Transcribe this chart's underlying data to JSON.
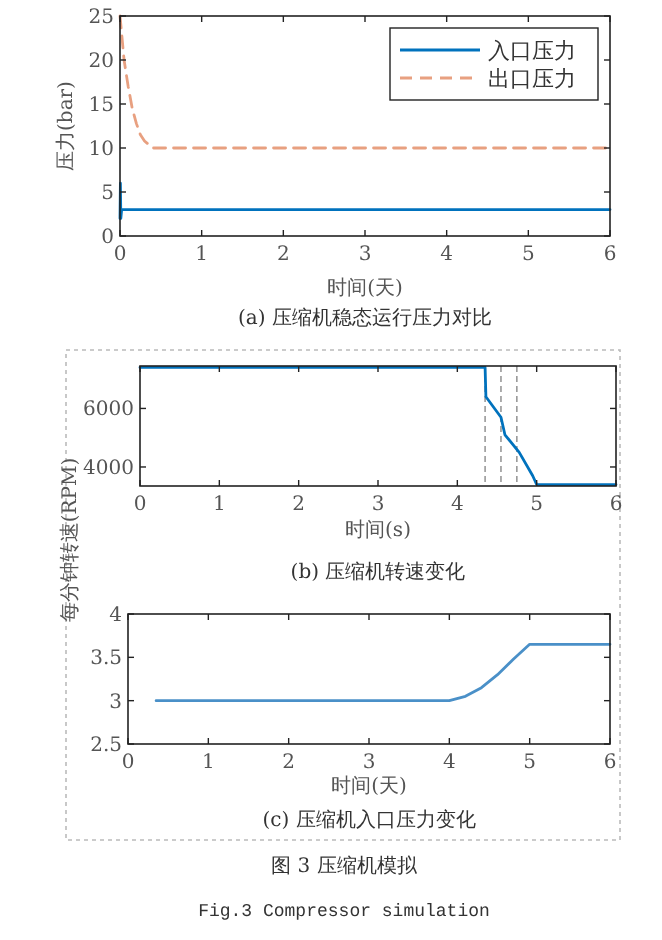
{
  "chart_data": [
    {
      "type": "line",
      "title": "(a) 压缩机稳态运行压力对比",
      "xlabel": "时间(天)",
      "ylabel": "压力(bar)",
      "xlim": [
        0,
        6
      ],
      "xticks": [
        0,
        1,
        2,
        3,
        4,
        5,
        6
      ],
      "ylim": [
        0,
        25
      ],
      "yticks": [
        0,
        5,
        10,
        15,
        20,
        25
      ],
      "legend": "top right",
      "series": [
        {
          "name": "入口压力",
          "color": "#0072bd",
          "line_style": "solid",
          "x": [
            0,
            0.005,
            0.01,
            0.02,
            0.05,
            6
          ],
          "values": [
            2,
            6,
            2,
            3,
            3,
            3
          ]
        },
        {
          "name": "出口压力",
          "color": "#e8a080",
          "line_style": "dashed",
          "x": [
            0,
            0.05,
            0.1,
            0.15,
            0.2,
            0.25,
            0.3,
            0.4,
            0.5,
            6
          ],
          "values": [
            25,
            20,
            17,
            14.5,
            12.8,
            11.5,
            10.8,
            10,
            10,
            10
          ]
        }
      ]
    },
    {
      "type": "line",
      "title": "(b) 压缩机转速变化",
      "xlabel": "时间(s)",
      "ylabel": "每分钟转速(RPM)",
      "xlim": [
        0,
        6
      ],
      "xticks": [
        0,
        1,
        2,
        3,
        4,
        5,
        6
      ],
      "ylim": [
        3350,
        7450
      ],
      "yticks": [
        4000,
        6000
      ],
      "ref_lines": [
        {
          "axis": "x",
          "value": 4.35,
          "color": "#999999",
          "line_style": "dashed"
        },
        {
          "axis": "x",
          "value": 4.55,
          "color": "#999999",
          "line_style": "dashed"
        },
        {
          "axis": "x",
          "value": 4.75,
          "color": "#999999",
          "line_style": "dashed"
        }
      ],
      "series": [
        {
          "color": "#0072bd",
          "x": [
            0,
            4.35,
            4.36,
            4.55,
            4.6,
            4.78,
            4.95,
            5,
            6
          ],
          "values": [
            7400,
            7400,
            6400,
            5700,
            5100,
            4500,
            3700,
            3400,
            3400
          ]
        }
      ]
    },
    {
      "type": "line",
      "title": "(c) 压缩机入口压力变化",
      "xlabel": "时间(天)",
      "xlim": [
        0,
        6
      ],
      "xticks": [
        0,
        1,
        2,
        3,
        4,
        5,
        6
      ],
      "ylim": [
        2.5,
        4
      ],
      "yticks": [
        2.5,
        3,
        3.5,
        4
      ],
      "annotations": [
        "图 3 压缩机模拟",
        "Fig.3  Compressor  simulation"
      ],
      "series": [
        {
          "color": "#4a90c8",
          "x": [
            0.35,
            1,
            2,
            3,
            4,
            4.2,
            4.4,
            4.6,
            4.8,
            5,
            6
          ],
          "values": [
            3,
            3,
            3,
            3,
            3,
            3.05,
            3.15,
            3.3,
            3.48,
            3.65,
            3.65
          ]
        }
      ]
    }
  ]
}
